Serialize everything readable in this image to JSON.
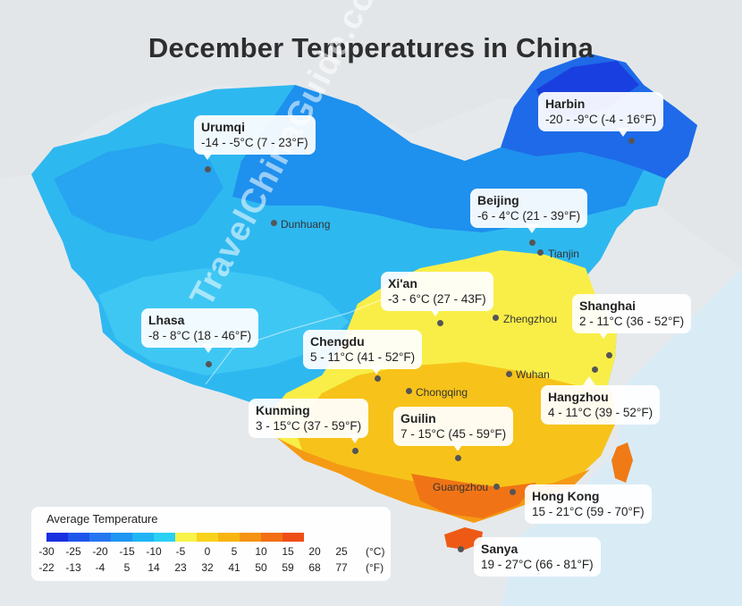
{
  "title": "December Temperatures in China",
  "watermark": "TravelChinaGuide.com",
  "callouts": [
    {
      "name": "Harbin",
      "temp": "-20 - -9°C (-4 - 16°F)"
    },
    {
      "name": "Urumqi",
      "temp": "-14 - -5°C (7 - 23°F)"
    },
    {
      "name": "Beijing",
      "temp": "-6 - 4°C (21 - 39°F)"
    },
    {
      "name": "Xi'an",
      "temp": "-3 - 6°C (27 - 43F)"
    },
    {
      "name": "Lhasa",
      "temp": "-8 - 8°C (18 - 46°F)"
    },
    {
      "name": "Chengdu",
      "temp": "5 - 11°C (41 - 52°F)"
    },
    {
      "name": "Shanghai",
      "temp": "2 - 11°C (36 - 52°F)"
    },
    {
      "name": "Hangzhou",
      "temp": "4 - 11°C (39 - 52°F)"
    },
    {
      "name": "Kunming",
      "temp": "3 - 15°C (37 - 59°F)"
    },
    {
      "name": "Guilin",
      "temp": "7 - 15°C (45 - 59°F)"
    },
    {
      "name": "Hong Kong",
      "temp": "15 - 21°C (59 - 70°F)"
    },
    {
      "name": "Sanya",
      "temp": "19 - 27°C (66 - 81°F)"
    }
  ],
  "minor_cities": [
    "Dunhuang",
    "Tianjin",
    "Zhengzhou",
    "Wuhan",
    "Chongqing",
    "Guangzhou"
  ],
  "legend": {
    "title": "Average Temperature",
    "celsius": [
      "-30",
      "-25",
      "-20",
      "-15",
      "-10",
      "-5",
      "0",
      "5",
      "10",
      "15",
      "20",
      "25"
    ],
    "fahrenheit": [
      "-22",
      "-13",
      "-4",
      "5",
      "14",
      "23",
      "32",
      "41",
      "50",
      "59",
      "68",
      "77"
    ],
    "unit_c": "(°C)",
    "unit_f": "(°F)",
    "colors": [
      "#1a2fe0",
      "#1f55ea",
      "#2477f0",
      "#1e96f2",
      "#1fb4f3",
      "#2bd0f5",
      "#f8f24a",
      "#fad21c",
      "#f8b50f",
      "#f59312",
      "#f26f14",
      "#ee4e16"
    ]
  }
}
